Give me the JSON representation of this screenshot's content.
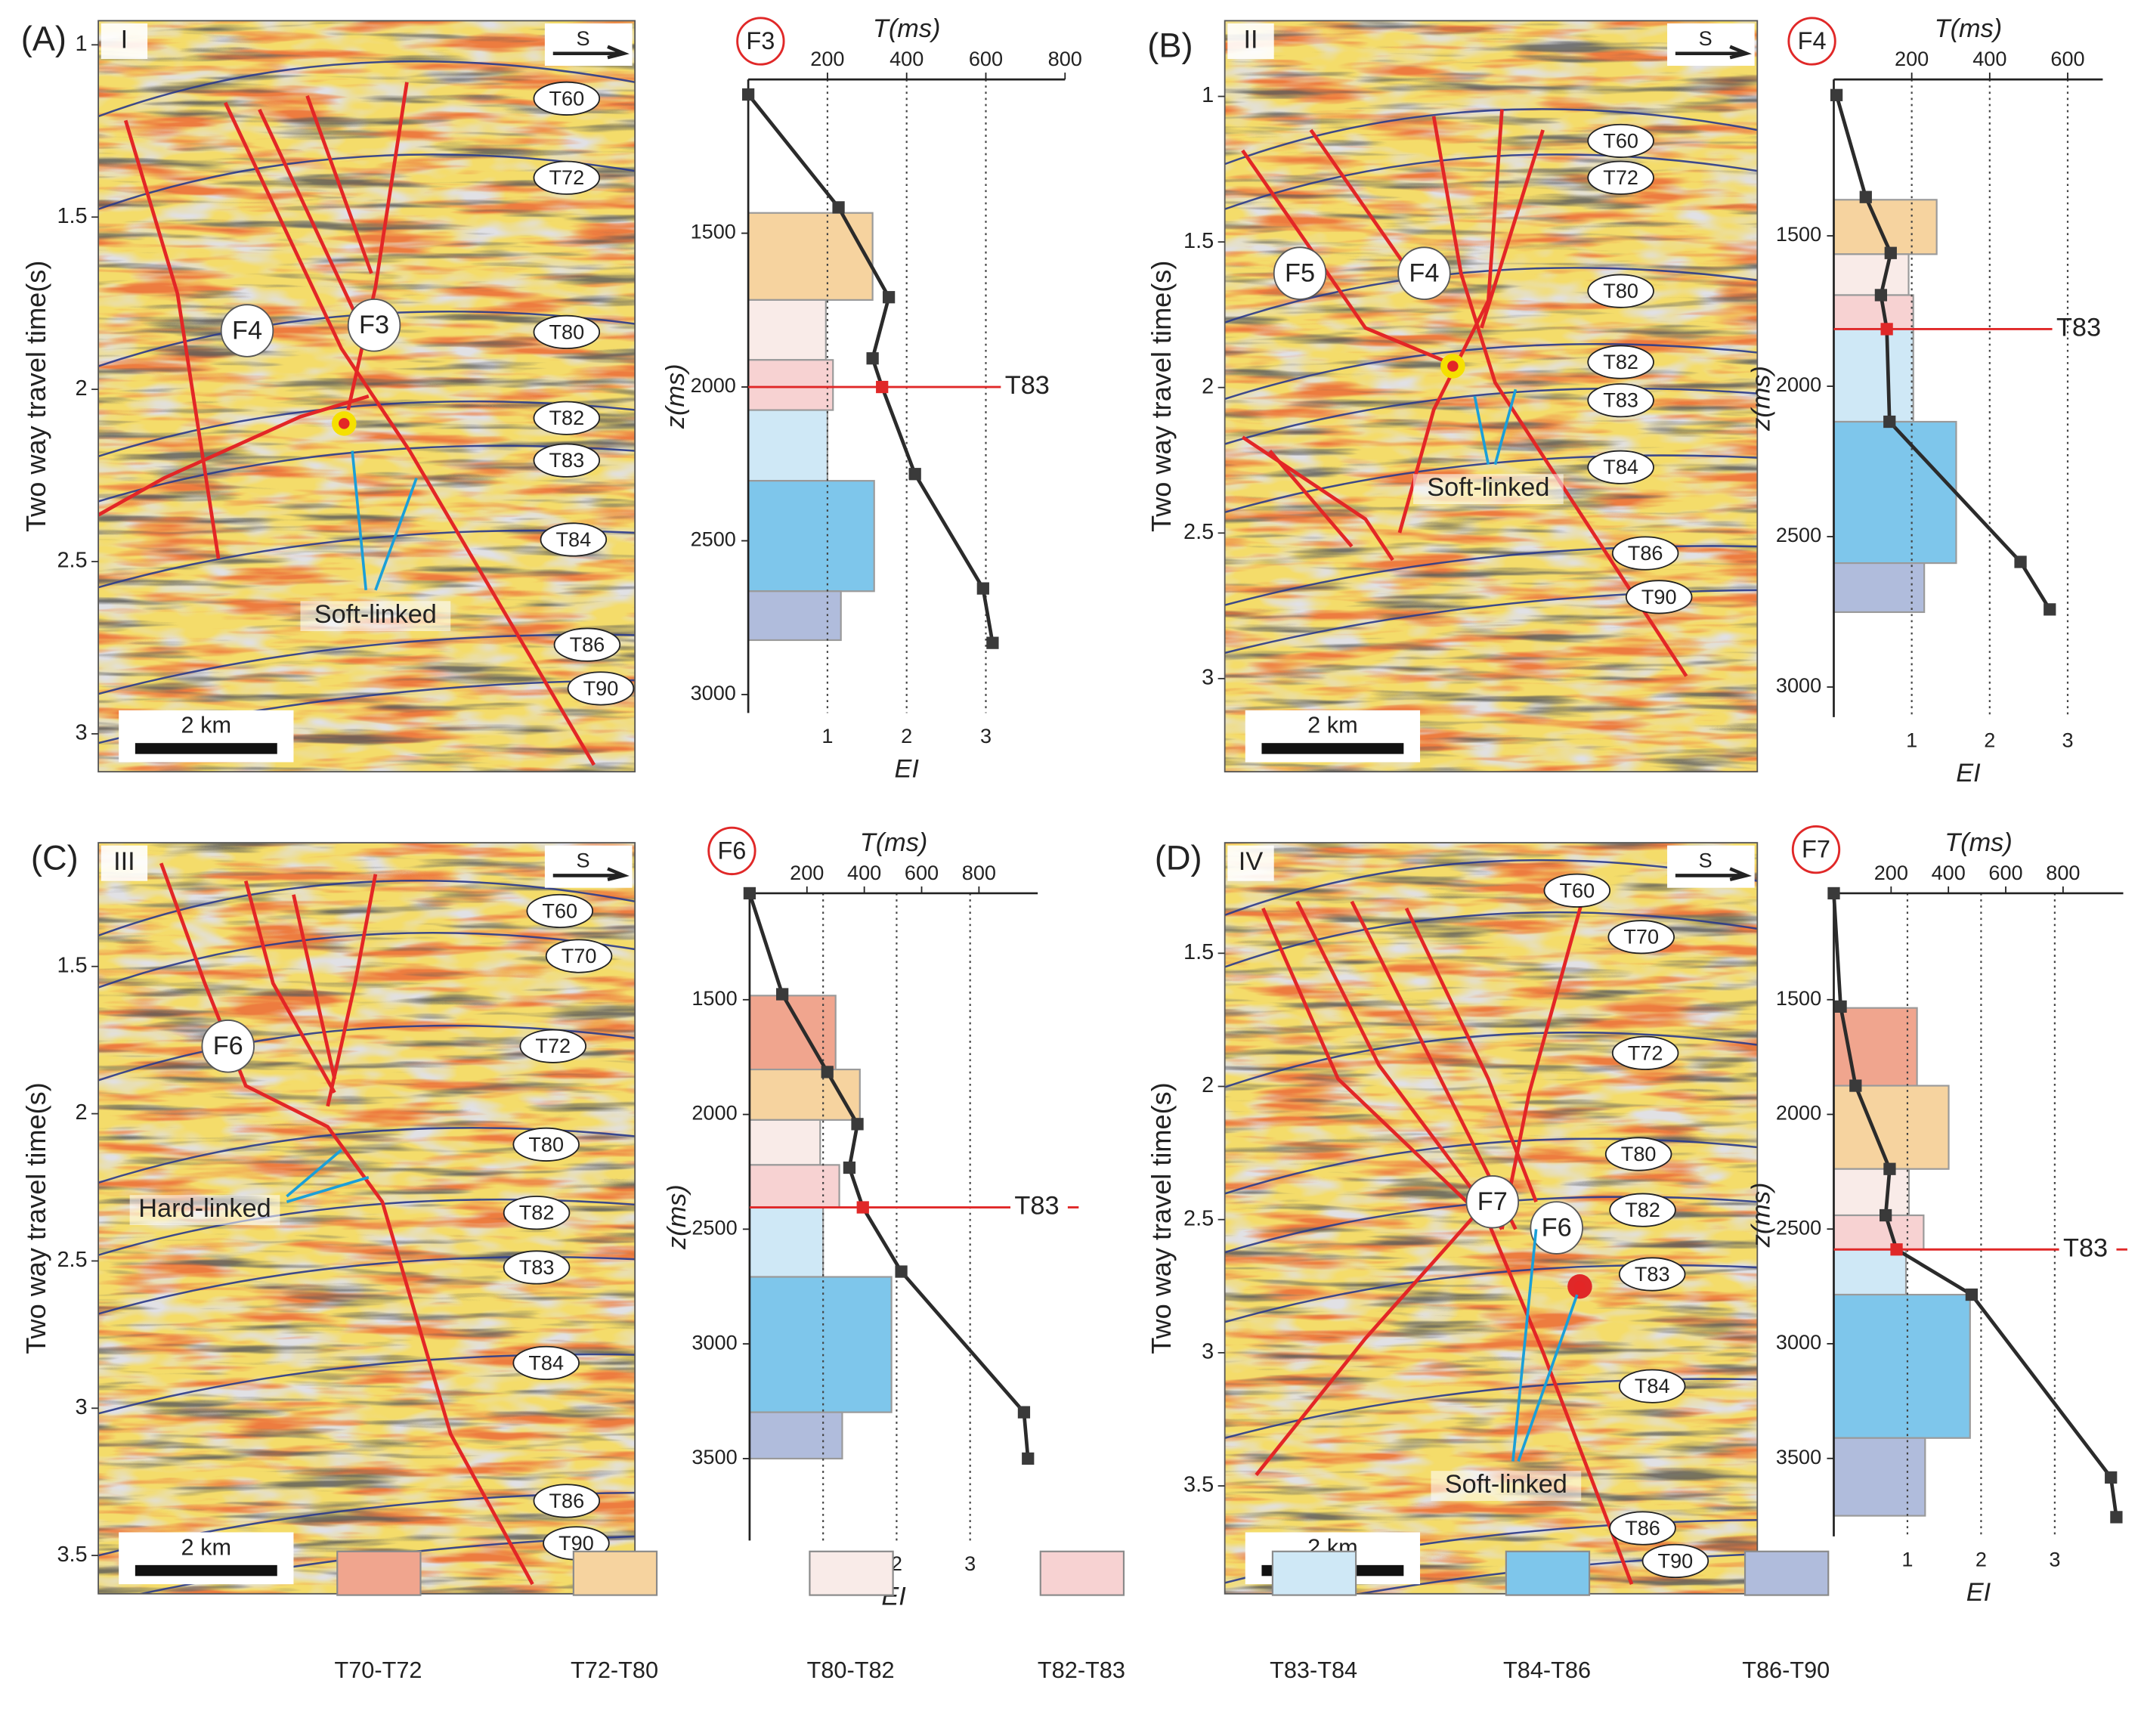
{
  "panels": [
    {
      "letter": "(A)",
      "section": "I",
      "direction": "S",
      "ylabel": "Two way travel time(s)",
      "ylim": [
        0.93,
        3.11
      ],
      "yticks": [
        1,
        1.5,
        2,
        2.5,
        3
      ],
      "horizons": [
        "T60",
        "T72",
        "T80",
        "T82",
        "T83",
        "T84",
        "T86",
        "T90"
      ],
      "faults": [
        "F4",
        "F3"
      ],
      "annotation": "Soft-linked",
      "scale": "2 km"
    },
    {
      "letter": "(B)",
      "section": "II",
      "direction": "S",
      "ylabel": "Two way travel time(s)",
      "ylim": [
        0.74,
        3.32
      ],
      "yticks": [
        1,
        1.5,
        2,
        2.5,
        3
      ],
      "horizons": [
        "T60",
        "T72",
        "T80",
        "T82",
        "T83",
        "T84",
        "T86",
        "T90"
      ],
      "faults": [
        "F5",
        "F4"
      ],
      "annotation": "Soft-linked",
      "scale": "2 km"
    },
    {
      "letter": "(C)",
      "section": "III",
      "direction": "S",
      "ylabel": "Two way travel time(s)",
      "ylim": [
        1.08,
        3.63
      ],
      "yticks": [
        1.5,
        2,
        2.5,
        3,
        3.5
      ],
      "horizons": [
        "T60",
        "T70",
        "T72",
        "T80",
        "T82",
        "T83",
        "T84",
        "T86",
        "T90"
      ],
      "faults": [
        "F6"
      ],
      "annotation": "Hard-linked",
      "scale": "2 km"
    },
    {
      "letter": "(D)",
      "section": "IV",
      "direction": "S",
      "ylabel": "Two way travel time(s)",
      "ylim": [
        1.085,
        3.905
      ],
      "yticks": [
        1.5,
        2,
        2.5,
        3,
        3.5
      ],
      "horizons": [
        "T60",
        "T70",
        "T72",
        "T80",
        "T82",
        "T83",
        "T84",
        "T86",
        "T90"
      ],
      "faults": [
        "F7",
        "F6"
      ],
      "annotation": "Soft-linked",
      "scale": "2 km"
    }
  ],
  "chart_data": [
    {
      "type": "profile",
      "title": "F3",
      "xlabel": "EI",
      "x2label": "T(ms)",
      "ylabel": "z(ms)",
      "y_inverted": true,
      "grid": true,
      "ylim": [
        1000,
        3060
      ],
      "yticks": [
        1500,
        2000,
        2500,
        3000
      ],
      "xlim": [
        0,
        4
      ],
      "xticks": [
        1,
        2,
        3
      ],
      "x2lim": [
        0,
        800
      ],
      "x2ticks": [
        200,
        400,
        600,
        800
      ],
      "bars": [
        {
          "color": "#f6d39f",
          "z": [
            1434,
            1717
          ],
          "value": 1.57
        },
        {
          "color": "#f9ebe8",
          "z": [
            1717,
            1912
          ],
          "value": 0.98
        },
        {
          "color": "#f7d2d2",
          "z": [
            1912,
            2075
          ],
          "value": 1.07
        },
        {
          "color": "#cfe8f6",
          "z": [
            2075,
            2305
          ],
          "value": 1.0
        },
        {
          "color": "#7ec6eb",
          "z": [
            2305,
            2664
          ],
          "value": 1.59
        },
        {
          "color": "#b0bcdc",
          "z": [
            2664,
            2823
          ],
          "value": 1.17
        }
      ],
      "line": {
        "color": "#2b2b2b",
        "axis": "x2",
        "z": [
          1049,
          1416,
          1708,
          1907,
          2000,
          2283,
          2655,
          2832
        ],
        "values": [
          0,
          228,
          355,
          314,
          338,
          421,
          593,
          617
        ]
      },
      "reference": {
        "label": "T83",
        "z": 2000,
        "color": "#e02828"
      }
    },
    {
      "type": "profile",
      "title": "F4",
      "xlabel": "EI",
      "x2label": "T(ms)",
      "ylabel": "z(ms)",
      "y_inverted": true,
      "grid": true,
      "ylim": [
        980,
        3100
      ],
      "yticks": [
        1500,
        2000,
        2500,
        3000
      ],
      "xlim": [
        0,
        3.45
      ],
      "xticks": [
        1,
        2,
        3
      ],
      "x2lim": [
        0,
        690
      ],
      "x2ticks": [
        200,
        400,
        600
      ],
      "bars": [
        {
          "color": "#f6d39f",
          "z": [
            1380,
            1561
          ],
          "value": 1.32
        },
        {
          "color": "#f9ebe8",
          "z": [
            1561,
            1697
          ],
          "value": 0.96
        },
        {
          "color": "#f7d2d2",
          "z": [
            1697,
            1810
          ],
          "value": 1.02
        },
        {
          "color": "#cfe8f6",
          "z": [
            1810,
            2118
          ],
          "value": 1.02
        },
        {
          "color": "#7ec6eb",
          "z": [
            2118,
            2588
          ],
          "value": 1.57
        },
        {
          "color": "#b0bcdc",
          "z": [
            2588,
            2751
          ],
          "value": 1.16
        }
      ],
      "line": {
        "color": "#2b2b2b",
        "axis": "x2",
        "z": [
          1032,
          1371,
          1557,
          1697,
          1810,
          2118,
          2584,
          2742
        ],
        "values": [
          7,
          82,
          146,
          121,
          136,
          143,
          479,
          554
        ]
      },
      "reference": {
        "label": "T83",
        "z": 1810,
        "color": "#e02828"
      }
    },
    {
      "type": "profile",
      "title": "F6",
      "xlabel": "EI",
      "x2label": "T(ms)",
      "ylabel": "z(ms)",
      "y_inverted": true,
      "grid": true,
      "ylim": [
        1036,
        3857
      ],
      "yticks": [
        1500,
        2000,
        2500,
        3000,
        3500
      ],
      "xlim": [
        0,
        3.92
      ],
      "xticks": [
        1,
        2,
        3
      ],
      "x2lim": [
        0,
        1005
      ],
      "x2ticks": [
        200,
        400,
        600,
        800
      ],
      "bars": [
        {
          "color": "#f0a58e",
          "z": [
            1482,
            1804
          ],
          "value": 1.17
        },
        {
          "color": "#f6d39f",
          "z": [
            1804,
            2024
          ],
          "value": 1.5
        },
        {
          "color": "#f9ebe8",
          "z": [
            2024,
            2220
          ],
          "value": 0.96
        },
        {
          "color": "#f7d2d2",
          "z": [
            2220,
            2405
          ],
          "value": 1.22
        },
        {
          "color": "#cfe8f6",
          "z": [
            2405,
            2708
          ],
          "value": 1.0
        },
        {
          "color": "#7ec6eb",
          "z": [
            2708,
            3298
          ],
          "value": 1.93
        },
        {
          "color": "#b0bcdc",
          "z": [
            3298,
            3500
          ],
          "value": 1.26
        }
      ],
      "line": {
        "color": "#2b2b2b",
        "axis": "x2",
        "z": [
          1036,
          1476,
          1815,
          2042,
          2232,
          2405,
          2685,
          3298,
          3500
        ],
        "values": [
          0,
          114,
          271,
          376,
          348,
          395,
          529,
          957,
          971
        ]
      },
      "reference": {
        "label": "T83",
        "z": 2405,
        "color": "#e02828"
      }
    },
    {
      "type": "profile",
      "title": "F7",
      "xlabel": "EI",
      "x2label": "T(ms)",
      "ylabel": "z(ms)",
      "y_inverted": true,
      "grid": true,
      "ylim": [
        1036,
        3840
      ],
      "yticks": [
        1500,
        2000,
        2500,
        3000,
        3500
      ],
      "xlim": [
        0,
        3.93
      ],
      "xticks": [
        1,
        2,
        3
      ],
      "x2lim": [
        0,
        1010
      ],
      "x2ticks": [
        200,
        400,
        600,
        800
      ],
      "bars": [
        {
          "color": "#f0a58e",
          "z": [
            1536,
            1875
          ],
          "value": 1.13
        },
        {
          "color": "#f6d39f",
          "z": [
            1875,
            2238
          ],
          "value": 1.56
        },
        {
          "color": "#f9ebe8",
          "z": [
            2238,
            2440
          ],
          "value": 1.02
        },
        {
          "color": "#f7d2d2",
          "z": [
            2440,
            2589
          ],
          "value": 1.22
        },
        {
          "color": "#cfe8f6",
          "z": [
            2589,
            2786
          ],
          "value": 0.98
        },
        {
          "color": "#7ec6eb",
          "z": [
            2786,
            3411
          ],
          "value": 1.85
        },
        {
          "color": "#b0bcdc",
          "z": [
            3411,
            3750
          ],
          "value": 1.24
        }
      ],
      "line": {
        "color": "#2b2b2b",
        "axis": "x2",
        "z": [
          1036,
          1530,
          1875,
          2238,
          2440,
          2589,
          2786,
          3583,
          3756
        ],
        "values": [
          0,
          24,
          76,
          195,
          181,
          219,
          481,
          967,
          986
        ]
      },
      "reference": {
        "label": "T83",
        "z": 2589,
        "color": "#e02828"
      }
    }
  ],
  "legend": {
    "items": [
      {
        "name": "T70-T72",
        "color": "#f0a58e"
      },
      {
        "name": "T72-T80",
        "color": "#f6d39f"
      },
      {
        "name": "T80-T82",
        "color": "#f9ebe8"
      },
      {
        "name": "T82-T83",
        "color": "#f7d2d2"
      },
      {
        "name": "T83-T84",
        "color": "#cfe8f6"
      },
      {
        "name": "T84-T86",
        "color": "#7ec6eb"
      },
      {
        "name": "T86-T90",
        "color": "#b0bcdc"
      }
    ]
  }
}
